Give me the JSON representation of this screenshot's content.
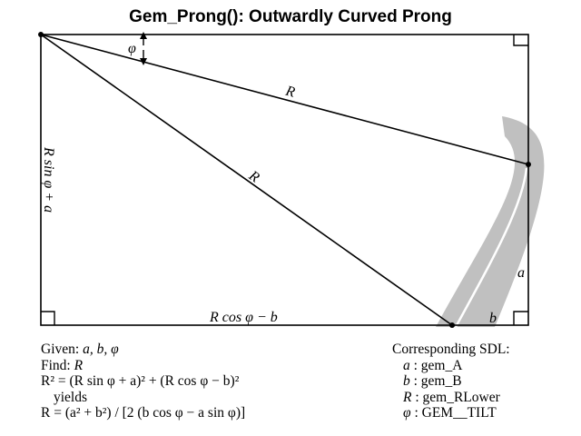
{
  "title": "Gem_Prong(): Outwardly Curved Prong",
  "diagram": {
    "labels": {
      "phi": "φ",
      "r_upper": "R",
      "r_diag": "R",
      "left_side": "R sin φ + a",
      "bottom_side": "R cos φ − b",
      "a": "a",
      "b": "b"
    },
    "colors": {
      "line": "#000000",
      "prong": "#c0c0c0",
      "prong_highlight": "#ffffff"
    }
  },
  "left_notes": {
    "given_label": "Given: ",
    "given_vars": "a, b, φ",
    "find_label": "Find: ",
    "find_var": "R",
    "eq1": "R² = (R sin φ + a)² + (R cos φ − b)²",
    "yields": "yields",
    "eq2": "R = (a² + b²) / [2 (b cos φ − a sin φ)]"
  },
  "right_notes": {
    "heading": "Corresponding SDL:",
    "items": [
      {
        "sym": "a",
        "val": " : gem_A"
      },
      {
        "sym": "b",
        "val": " : gem_B"
      },
      {
        "sym": "R",
        "val": " : gem_RLower"
      },
      {
        "sym": "φ",
        "val": " : GEM__TILT"
      }
    ]
  }
}
